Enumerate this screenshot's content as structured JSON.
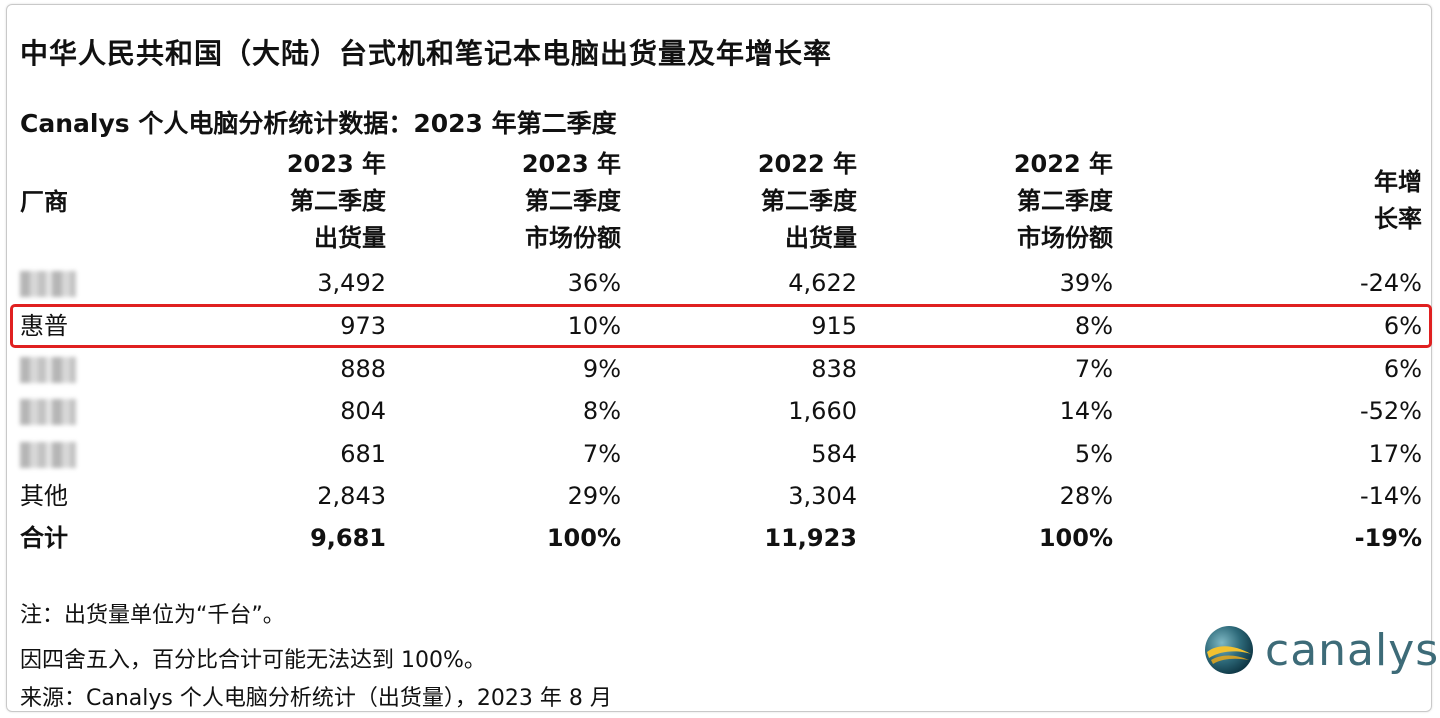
{
  "title": "中华人民共和国（大陆）台式机和笔记本电脑出货量及年增长率",
  "subtitle": "Canalys 个人电脑分析统计数据：2023 年第二季度",
  "headers": {
    "vendor": "厂商",
    "c1": [
      "2023 年",
      "第二季度",
      "出货量"
    ],
    "c2": [
      "2023 年",
      "第二季度",
      "市场份额"
    ],
    "c3": [
      "2022 年",
      "第二季度",
      "出货量"
    ],
    "c4": [
      "2022 年",
      "第二季度",
      "市场份额"
    ],
    "c5": [
      "年增",
      "长率"
    ]
  },
  "rows": [
    {
      "vendor": "",
      "blurred": true,
      "c1": "3,492",
      "c2": "36%",
      "c3": "4,622",
      "c4": "39%",
      "c5": "-24%"
    },
    {
      "vendor": "惠普",
      "blurred": false,
      "c1": "973",
      "c2": "10%",
      "c3": "915",
      "c4": "8%",
      "c5": "6%"
    },
    {
      "vendor": "",
      "blurred": true,
      "c1": "888",
      "c2": "9%",
      "c3": "838",
      "c4": "7%",
      "c5": "6%"
    },
    {
      "vendor": "",
      "blurred": true,
      "c1": "804",
      "c2": "8%",
      "c3": "1,660",
      "c4": "14%",
      "c5": "-52%"
    },
    {
      "vendor": "",
      "blurred": true,
      "c1": "681",
      "c2": "7%",
      "c3": "584",
      "c4": "5%",
      "c5": "17%"
    },
    {
      "vendor": "其他",
      "blurred": false,
      "c1": "2,843",
      "c2": "29%",
      "c3": "3,304",
      "c4": "28%",
      "c5": "-14%"
    },
    {
      "vendor": "合计",
      "blurred": false,
      "c1": "9,681",
      "c2": "100%",
      "c3": "11,923",
      "c4": "100%",
      "c5": "-19%"
    }
  ],
  "notes": [
    "注：出货量单位为“千台”。",
    "因四舍五入，百分比合计可能无法达到 100%。",
    "来源：Canalys 个人电脑分析统计（出货量），2023 年 8 月"
  ],
  "logo": {
    "text": "canalys"
  },
  "colors": {
    "highlight": "#e02020",
    "logo": "#3d6b78"
  }
}
